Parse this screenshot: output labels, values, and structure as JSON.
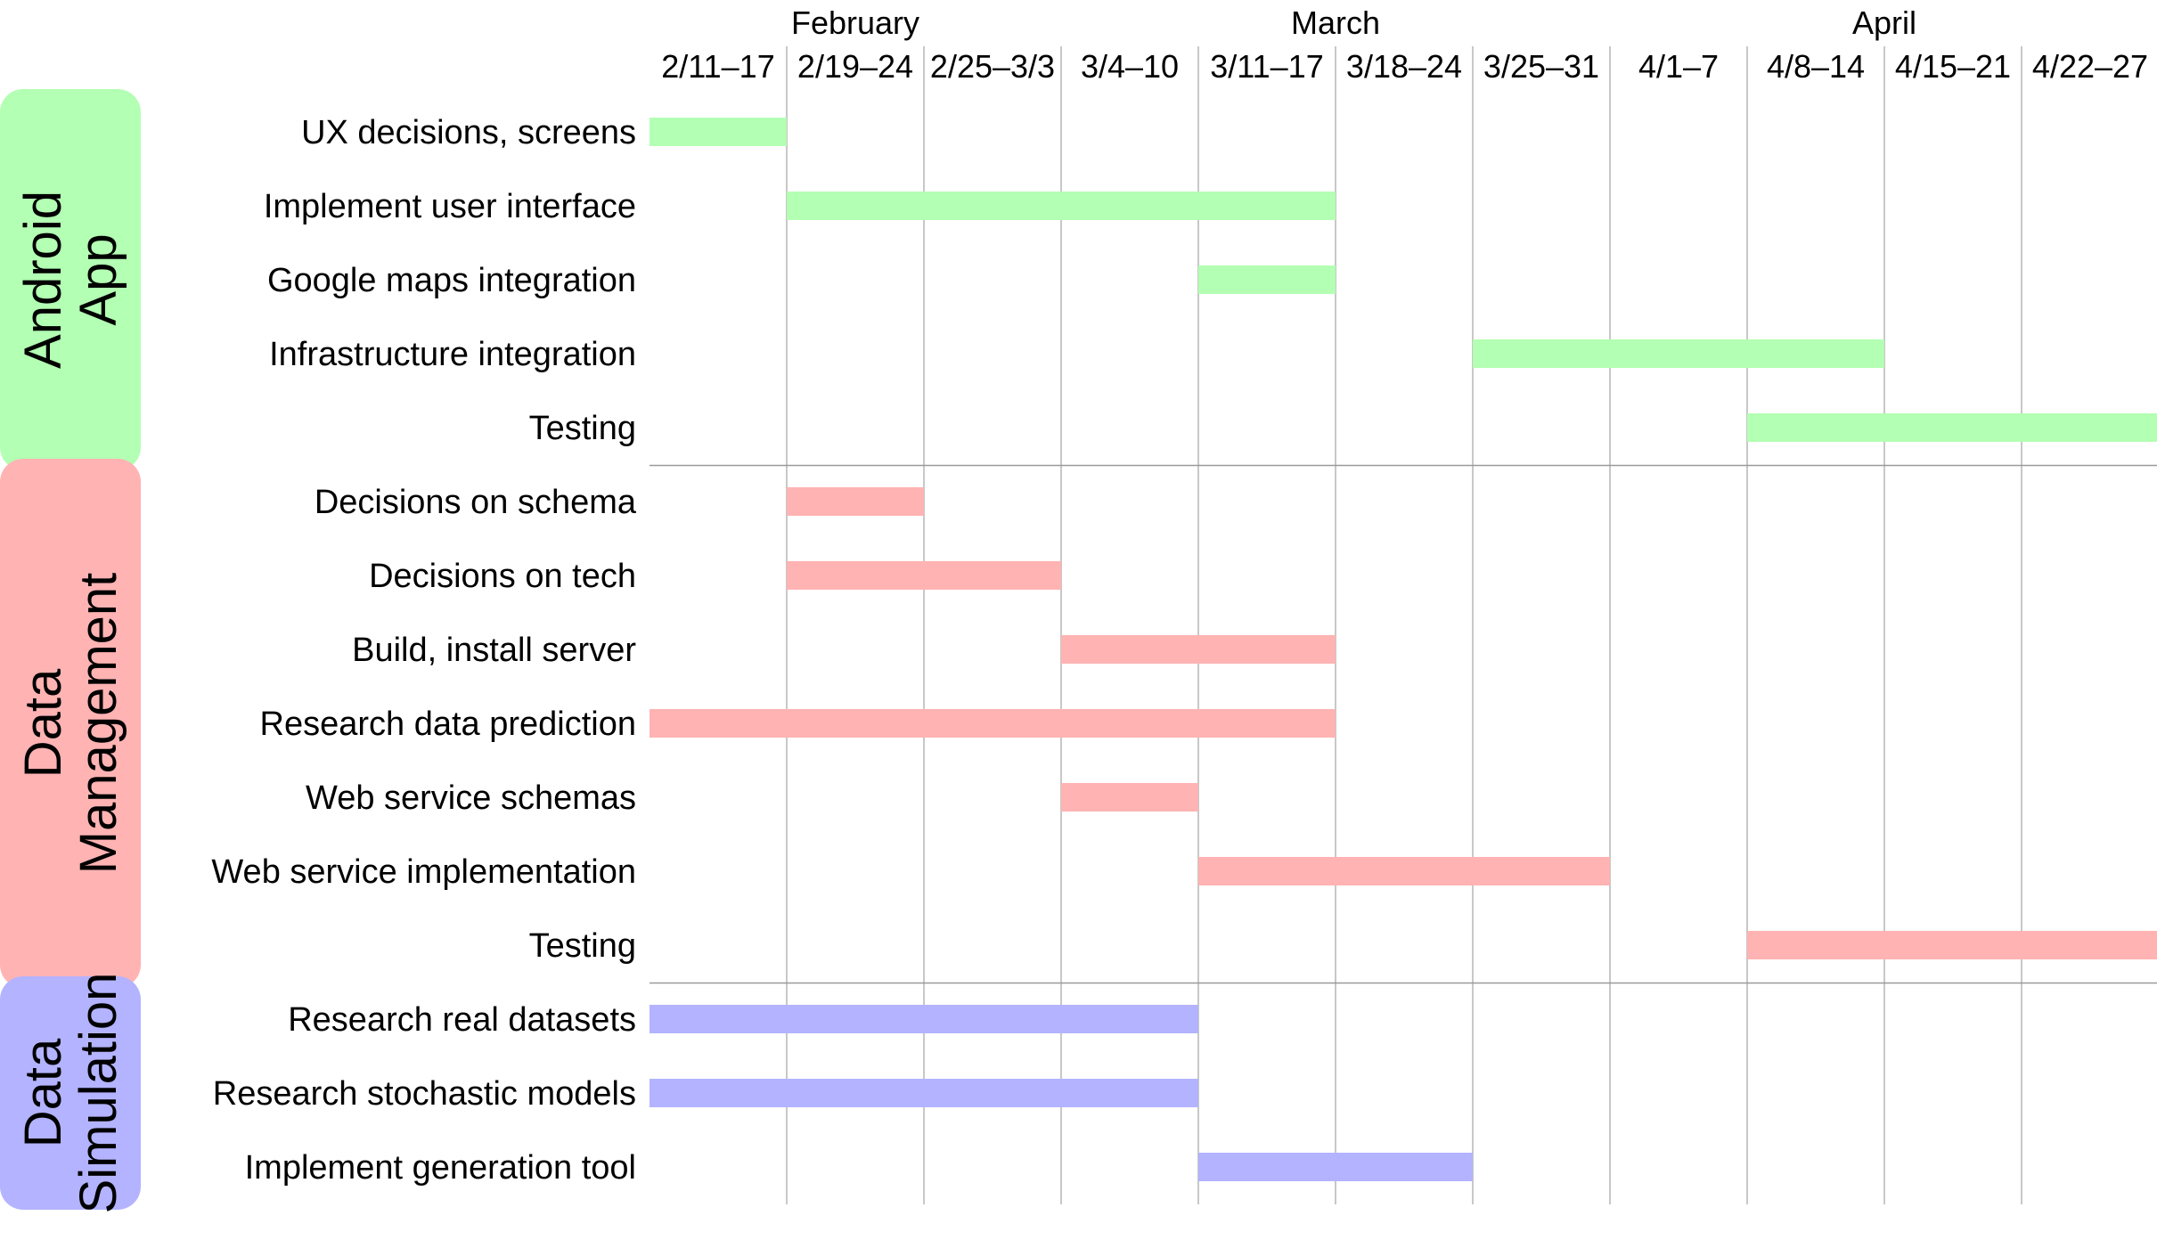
{
  "chart_data": {
    "type": "gantt",
    "months": [
      {
        "label": "February",
        "center_week": 1.5
      },
      {
        "label": "March",
        "center_week": 5
      },
      {
        "label": "April",
        "center_week": 9
      }
    ],
    "weeks": [
      "2/11–17",
      "2/19–24",
      "2/25–3/3",
      "3/4–10",
      "3/11–17",
      "3/18–24",
      "3/25–31",
      "4/1–7",
      "4/8–14",
      "4/15–21",
      "4/22–27"
    ],
    "groups": [
      {
        "title_lines": [
          "Android",
          "App"
        ],
        "color": "#b3ffb3",
        "tasks": [
          {
            "name": "UX decisions, screens",
            "start_week": 0,
            "end_week": 1
          },
          {
            "name": "Implement user interface",
            "start_week": 1,
            "end_week": 5
          },
          {
            "name": "Google maps integration",
            "start_week": 4,
            "end_week": 5
          },
          {
            "name": "Infrastructure integration",
            "start_week": 6,
            "end_week": 9
          },
          {
            "name": "Testing",
            "start_week": 8,
            "end_week": 11
          }
        ]
      },
      {
        "title_lines": [
          "Data",
          "Management"
        ],
        "color": "#ffb3b3",
        "tasks": [
          {
            "name": "Decisions on schema",
            "start_week": 1,
            "end_week": 2
          },
          {
            "name": "Decisions on tech",
            "start_week": 1,
            "end_week": 3
          },
          {
            "name": "Build, install server",
            "start_week": 3,
            "end_week": 5
          },
          {
            "name": "Research data prediction",
            "start_week": 0,
            "end_week": 5
          },
          {
            "name": "Web service schemas",
            "start_week": 3,
            "end_week": 4
          },
          {
            "name": "Web service implementation",
            "start_week": 4,
            "end_week": 7
          },
          {
            "name": "Testing",
            "start_week": 8,
            "end_week": 11
          }
        ]
      },
      {
        "title_lines": [
          "Data",
          "Simulation"
        ],
        "color": "#b3b3ff",
        "tasks": [
          {
            "name": "Research real datasets",
            "start_week": 0,
            "end_week": 4
          },
          {
            "name": "Research stochastic models",
            "start_week": 0,
            "end_week": 4
          },
          {
            "name": "Implement generation tool",
            "start_week": 4,
            "end_week": 6
          }
        ]
      }
    ]
  }
}
